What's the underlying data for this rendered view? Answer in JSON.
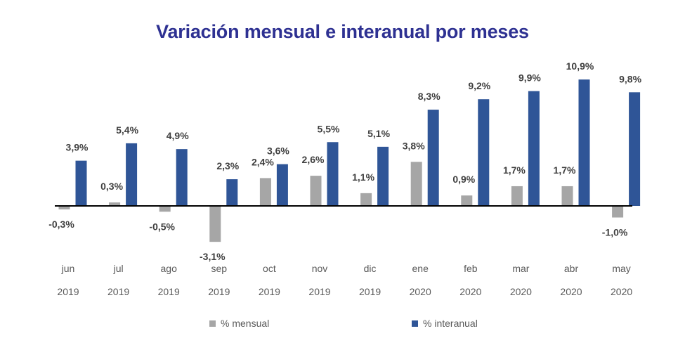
{
  "chart_data": {
    "type": "bar",
    "title": "Variación mensual e interanual por meses",
    "xlabel": "",
    "ylabel": "",
    "categories": [
      {
        "month": "jun",
        "year": "2019"
      },
      {
        "month": "jul",
        "year": "2019"
      },
      {
        "month": "ago",
        "year": "2019"
      },
      {
        "month": "sep",
        "year": "2019"
      },
      {
        "month": "oct",
        "year": "2019"
      },
      {
        "month": "nov",
        "year": "2019"
      },
      {
        "month": "dic",
        "year": "2019"
      },
      {
        "month": "ene",
        "year": "2020"
      },
      {
        "month": "feb",
        "year": "2020"
      },
      {
        "month": "mar",
        "year": "2020"
      },
      {
        "month": "abr",
        "year": "2020"
      },
      {
        "month": "may",
        "year": "2020"
      }
    ],
    "series": [
      {
        "name": "% mensual",
        "color": "#a6a6a6",
        "values": [
          -0.3,
          0.3,
          -0.5,
          -3.1,
          2.4,
          2.6,
          1.1,
          3.8,
          0.9,
          1.7,
          1.7,
          -1.0
        ],
        "labels": [
          "-0,3%",
          "0,3%",
          "-0,5%",
          "-3,1%",
          "2,4%",
          "2,6%",
          "1,1%",
          "3,8%",
          "0,9%",
          "1,7%",
          "1,7%",
          "-1,0%"
        ]
      },
      {
        "name": "% interanual",
        "color": "#2f5597",
        "values": [
          3.9,
          5.4,
          4.9,
          2.3,
          3.6,
          5.5,
          5.1,
          8.3,
          9.2,
          9.9,
          10.9,
          9.8
        ],
        "labels": [
          "3,9%",
          "5,4%",
          "4,9%",
          "2,3%",
          "3,6%",
          "5,5%",
          "5,1%",
          "8,3%",
          "9,2%",
          "9,9%",
          "10,9%",
          "9,8%"
        ]
      }
    ],
    "ylim": [
      -3.5,
      11.5
    ],
    "grid": false,
    "legend_position": "bottom"
  },
  "colors": {
    "title": "#2e3192",
    "axis": "#000000"
  }
}
